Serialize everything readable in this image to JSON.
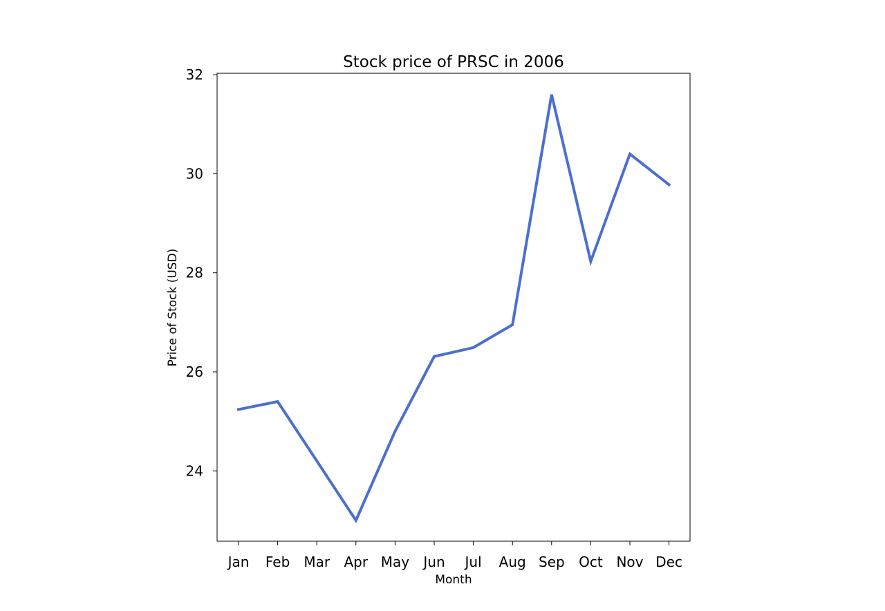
{
  "chart_data": {
    "type": "line",
    "title": "Stock price of PRSC in 2006",
    "xlabel": "Month",
    "ylabel": "Price of Stock (USD)",
    "categories": [
      "Jan",
      "Feb",
      "Mar",
      "Apr",
      "May",
      "Jun",
      "Jul",
      "Aug",
      "Sep",
      "Oct",
      "Nov",
      "Dec"
    ],
    "series": [
      {
        "values": [
          25.24,
          25.4,
          24.2,
          23.0,
          24.8,
          26.31,
          26.49,
          26.95,
          31.6,
          28.23,
          30.4,
          29.78
        ],
        "color": "#4c6fcf"
      }
    ],
    "ylim": [
      22.58,
      32.03
    ],
    "yticks": [
      24,
      26,
      28,
      30,
      32
    ],
    "grid": false,
    "legend": "none"
  }
}
